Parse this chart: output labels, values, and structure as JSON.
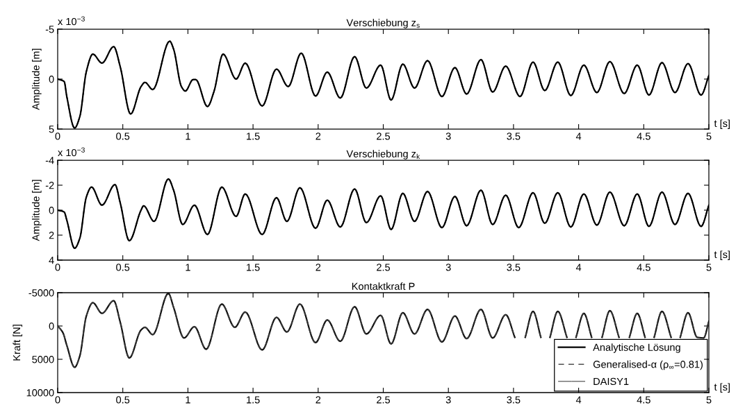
{
  "chart_data": [
    {
      "type": "line",
      "title": "Verschiebung z$_{s}$",
      "ylabel": "Amplitude [m]",
      "xlabel": "t [s]",
      "annotations": [
        "x 10$^{−3}$"
      ],
      "x": [
        0,
        0.05,
        0.07,
        0.13,
        0.17,
        0.22,
        0.27,
        0.34,
        0.43,
        0.48,
        0.56,
        0.64,
        0.67,
        0.73,
        0.86,
        0.89,
        0.95,
        0.98,
        1.04,
        1.06,
        1.15,
        1.2,
        1.27,
        1.37,
        1.44,
        1.57,
        1.68,
        1.77,
        1.87,
        1.98,
        2.07,
        2.17,
        2.28,
        2.37,
        2.48,
        2.56,
        2.65,
        2.74,
        2.84,
        2.95,
        3.05,
        3.14,
        3.25,
        3.34,
        3.44,
        3.55,
        3.65,
        3.74,
        3.84,
        3.94,
        4.04,
        4.14,
        4.24,
        4.35,
        4.45,
        4.54,
        4.64,
        4.74,
        4.84,
        4.94,
        5.0
      ],
      "series": [
        {
          "color": "#000000",
          "line_style": "solid",
          "values": [
            0,
            0.25,
            1.75,
            4.9,
            3.75,
            -0.75,
            -2.5,
            -1.6,
            -3.25,
            -1.25,
            3.5,
            0.75,
            0.33,
            1.05,
            -3.8,
            -3,
            0.75,
            1.2,
            0.05,
            0.05,
            2.75,
            1.25,
            -2.5,
            0,
            -1.6,
            2.7,
            -1,
            0.75,
            -2.6,
            1.7,
            -0.7,
            1.9,
            -2.25,
            0.9,
            -1.4,
            2.1,
            -1.5,
            0.9,
            -1.85,
            1.75,
            -1.15,
            1.5,
            -1.95,
            1.3,
            -1.3,
            1.75,
            -1.7,
            1.15,
            -1.7,
            1.65,
            -1.4,
            1.35,
            -1.75,
            1.45,
            -1.4,
            1.6,
            -1.65,
            1.35,
            -1.55,
            1.6,
            -0.35
          ]
        },
        {
          "color": "#000000",
          "line_style": "dashed",
          "values": [
            0,
            0.25,
            1.75,
            4.9,
            3.75,
            -0.75,
            -2.5,
            -1.6,
            -3.25,
            -1.25,
            3.5,
            0.75,
            0.33,
            1.05,
            -3.8,
            -3,
            0.75,
            1.2,
            0.05,
            0.05,
            2.75,
            1.25,
            -2.5,
            0,
            -1.6,
            2.7,
            -1,
            0.75,
            -2.6,
            1.7,
            -0.7,
            1.9,
            -2.25,
            0.9,
            -1.4,
            2.1,
            -1.5,
            0.9,
            -1.85,
            1.75,
            -1.15,
            1.5,
            -1.95,
            1.3,
            -1.3,
            1.75,
            -1.7,
            1.15,
            -1.7,
            1.65,
            -1.4,
            1.35,
            -1.75,
            1.45,
            -1.4,
            1.6,
            -1.65,
            1.35,
            -1.55,
            1.6,
            -0.35
          ]
        },
        {
          "color": "#000000",
          "line_style": "solid",
          "values": [
            0,
            0.25,
            1.75,
            4.9,
            3.75,
            -0.75,
            -2.5,
            -1.6,
            -3.25,
            -1.25,
            3.5,
            0.75,
            0.33,
            1.05,
            -3.8,
            -3,
            0.75,
            1.2,
            0.05,
            0.05,
            2.75,
            1.25,
            -2.5,
            0,
            -1.6,
            2.7,
            -1,
            0.75,
            -2.6,
            1.7,
            -0.7,
            1.9,
            -2.25,
            0.9,
            -1.4,
            2.1,
            -1.5,
            0.9,
            -1.85,
            1.75,
            -1.15,
            1.5,
            -1.95,
            1.3,
            -1.3,
            1.75,
            -1.7,
            1.15,
            -1.7,
            1.65,
            -1.4,
            1.35,
            -1.75,
            1.45,
            -1.4,
            1.6,
            -1.65,
            1.35,
            -1.55,
            1.6,
            -0.35
          ]
        }
      ],
      "xlim": [
        0,
        5
      ],
      "xticks": [
        0,
        0.5,
        1,
        1.5,
        2,
        2.5,
        3,
        3.5,
        4,
        4.5,
        5
      ],
      "ylim": [
        5,
        -5
      ],
      "yticks": [
        -5,
        0,
        5
      ],
      "grid": false,
      "legend": false
    },
    {
      "type": "line",
      "title": "Verschiebung z$_{k}$",
      "ylabel": "Amplitude [m]",
      "xlabel": "t [s]",
      "annotations": [
        "x 10$^{−3}$"
      ],
      "x": [
        0,
        0.05,
        0.07,
        0.13,
        0.17,
        0.22,
        0.26,
        0.34,
        0.44,
        0.48,
        0.55,
        0.64,
        0.66,
        0.74,
        0.85,
        0.89,
        0.96,
        1.05,
        1.15,
        1.26,
        1.37,
        1.44,
        1.57,
        1.68,
        1.76,
        1.86,
        1.98,
        2.07,
        2.17,
        2.28,
        2.37,
        2.48,
        2.56,
        2.65,
        2.74,
        2.84,
        2.95,
        3.05,
        3.14,
        3.25,
        3.34,
        3.44,
        3.54,
        3.65,
        3.74,
        3.84,
        3.94,
        4.04,
        4.14,
        4.24,
        4.35,
        4.45,
        4.54,
        4.64,
        4.74,
        4.84,
        4.94,
        5.0
      ],
      "series": [
        {
          "color": "#000000",
          "line_style": "solid",
          "values": [
            0,
            0.15,
            0.8,
            3.05,
            2.25,
            -1.05,
            -1.85,
            -0.4,
            -2.05,
            -0.6,
            2.45,
            0,
            -0.35,
            0.9,
            -2.5,
            -1.6,
            1.15,
            -0.4,
            1.95,
            -1.85,
            0.5,
            -1.3,
            1.95,
            -1.0,
            0.9,
            -1.8,
            1.45,
            -0.8,
            1.35,
            -1.7,
            1.0,
            -1.15,
            1.55,
            -1.35,
            0.9,
            -1.5,
            1.4,
            -1.1,
            1.25,
            -1.6,
            1.15,
            -1.2,
            1.4,
            -1.4,
            1.05,
            -1.4,
            1.35,
            -1.3,
            1.2,
            -1.45,
            1.25,
            -1.3,
            1.3,
            -1.45,
            1.15,
            -1.35,
            1.3,
            -0.4
          ]
        },
        {
          "color": "#000000",
          "line_style": "dashed",
          "values": [
            0,
            0.15,
            0.8,
            3.05,
            2.25,
            -1.05,
            -1.85,
            -0.4,
            -2.05,
            -0.6,
            2.45,
            0,
            -0.35,
            0.9,
            -2.5,
            -1.6,
            1.15,
            -0.4,
            1.95,
            -1.85,
            0.5,
            -1.3,
            1.95,
            -1.0,
            0.9,
            -1.8,
            1.45,
            -0.8,
            1.35,
            -1.7,
            1.0,
            -1.15,
            1.55,
            -1.35,
            0.9,
            -1.5,
            1.4,
            -1.1,
            1.25,
            -1.6,
            1.15,
            -1.2,
            1.4,
            -1.4,
            1.05,
            -1.4,
            1.35,
            -1.3,
            1.2,
            -1.45,
            1.25,
            -1.3,
            1.3,
            -1.45,
            1.15,
            -1.35,
            1.3,
            -0.4
          ]
        },
        {
          "color": "#000000",
          "line_style": "solid",
          "values": [
            0,
            0.15,
            0.8,
            3.05,
            2.25,
            -1.05,
            -1.85,
            -0.4,
            -2.05,
            -0.6,
            2.45,
            0,
            -0.35,
            0.9,
            -2.5,
            -1.6,
            1.15,
            -0.4,
            1.95,
            -1.85,
            0.5,
            -1.3,
            1.95,
            -1.0,
            0.9,
            -1.8,
            1.45,
            -0.8,
            1.35,
            -1.7,
            1.0,
            -1.15,
            1.55,
            -1.35,
            0.9,
            -1.5,
            1.4,
            -1.1,
            1.25,
            -1.6,
            1.15,
            -1.2,
            1.4,
            -1.4,
            1.05,
            -1.4,
            1.35,
            -1.3,
            1.2,
            -1.45,
            1.25,
            -1.3,
            1.3,
            -1.45,
            1.15,
            -1.35,
            1.3,
            -0.4
          ]
        }
      ],
      "xlim": [
        0,
        5
      ],
      "xticks": [
        0,
        0.5,
        1,
        1.5,
        2,
        2.5,
        3,
        3.5,
        4,
        4.5,
        5
      ],
      "ylim": [
        4,
        -4
      ],
      "yticks": [
        -4,
        -2,
        0,
        2,
        4
      ],
      "grid": false,
      "legend": false
    },
    {
      "type": "line",
      "title": "Kontaktkraft P",
      "ylabel": "Kraft [N]",
      "xlabel": "t [s]",
      "x": [
        0,
        0.04,
        0.07,
        0.13,
        0.17,
        0.22,
        0.27,
        0.34,
        0.43,
        0.48,
        0.55,
        0.64,
        0.67,
        0.73,
        0.85,
        0.89,
        0.97,
        1.05,
        1.14,
        1.26,
        1.36,
        1.44,
        1.57,
        1.68,
        1.76,
        1.86,
        1.98,
        2.07,
        2.17,
        2.28,
        2.37,
        2.48,
        2.56,
        2.65,
        2.74,
        2.84,
        2.95,
        3.05,
        3.14,
        3.25,
        3.34,
        3.44,
        3.51,
        3.55,
        3.59,
        3.65,
        3.71,
        3.74,
        3.78,
        3.84,
        3.91,
        3.94,
        3.98,
        4.04,
        4.1,
        4.14,
        4.18,
        4.24,
        4.31,
        4.35,
        4.39,
        4.45,
        4.51,
        4.54,
        4.58,
        4.64,
        4.71,
        4.74,
        4.78,
        4.84,
        4.91,
        4.96,
        5.0
      ],
      "series": [
        {
          "name": "Analytische Lösung",
          "color": "#000000",
          "line_style": "solid",
          "values": [
            0,
            1000,
            2900,
            6200,
            4500,
            -1500,
            -3500,
            -1900,
            -3800,
            -600,
            4800,
            600,
            200,
            1300,
            -4900,
            -2800,
            1800,
            100,
            3500,
            -3300,
            200,
            -2100,
            3600,
            -1300,
            900,
            -3300,
            2500,
            -900,
            2300,
            -2900,
            1200,
            -1600,
            2700,
            -2000,
            1200,
            -2500,
            2400,
            -1500,
            1900,
            -2500,
            1800,
            -1700,
            1700,
            null,
            1700,
            -2200,
            1700,
            null,
            1700,
            -2200,
            1700,
            null,
            1700,
            -1900,
            1700,
            null,
            1700,
            -2300,
            1700,
            null,
            1700,
            -1900,
            1700,
            null,
            1700,
            -2200,
            1700,
            null,
            1700,
            -2000,
            1700,
            1800,
            -700
          ]
        },
        {
          "name": "Generalised-α (ρ$_{∞}$=0.81)",
          "color": "#505050",
          "line_style": "dashed",
          "values": [
            0,
            1000,
            2900,
            6200,
            4500,
            -1500,
            -3500,
            -1900,
            -3800,
            -600,
            4800,
            600,
            200,
            1300,
            -4900,
            -2800,
            1800,
            100,
            3500,
            -3300,
            200,
            -2100,
            3600,
            -1300,
            900,
            -3300,
            2500,
            -900,
            2300,
            -2900,
            1200,
            -1600,
            2700,
            -2000,
            1200,
            -2500,
            2400,
            -1500,
            1900,
            -2500,
            1800,
            -1700,
            1700,
            null,
            1700,
            -2200,
            1700,
            null,
            1700,
            -2200,
            1700,
            null,
            1700,
            -1900,
            1700,
            null,
            1700,
            -2300,
            1700,
            null,
            1700,
            -1900,
            1700,
            null,
            1700,
            -2200,
            1700,
            null,
            1700,
            -2000,
            1700,
            1800,
            -700
          ]
        },
        {
          "name": "DAISY1",
          "color": "#282828",
          "line_style": "solid",
          "values": [
            0,
            1000,
            2900,
            6200,
            4500,
            -1500,
            -3500,
            -1900,
            -3800,
            -600,
            4800,
            600,
            200,
            1300,
            -4900,
            -2800,
            1800,
            100,
            3500,
            -3300,
            200,
            -2100,
            3600,
            -1300,
            900,
            -3300,
            2500,
            -900,
            2300,
            -2900,
            1200,
            -1600,
            2700,
            -2000,
            1200,
            -2500,
            2400,
            -1500,
            1900,
            -2500,
            1800,
            -1700,
            1700,
            null,
            1700,
            -2200,
            1700,
            null,
            1700,
            -2200,
            1700,
            null,
            1700,
            -1900,
            1700,
            null,
            1700,
            -2300,
            1700,
            null,
            1700,
            -1900,
            1700,
            null,
            1700,
            -2200,
            1700,
            null,
            1700,
            -2000,
            1700,
            1800,
            -700
          ]
        }
      ],
      "xlim": [
        0,
        5
      ],
      "xticks": [
        0,
        0.5,
        1,
        1.5,
        2,
        2.5,
        3,
        3.5,
        4,
        4.5,
        5
      ],
      "ylim": [
        10000,
        -5000
      ],
      "yticks": [
        -5000,
        0,
        5000,
        10000
      ],
      "grid": false,
      "legend": "bottom right"
    }
  ]
}
